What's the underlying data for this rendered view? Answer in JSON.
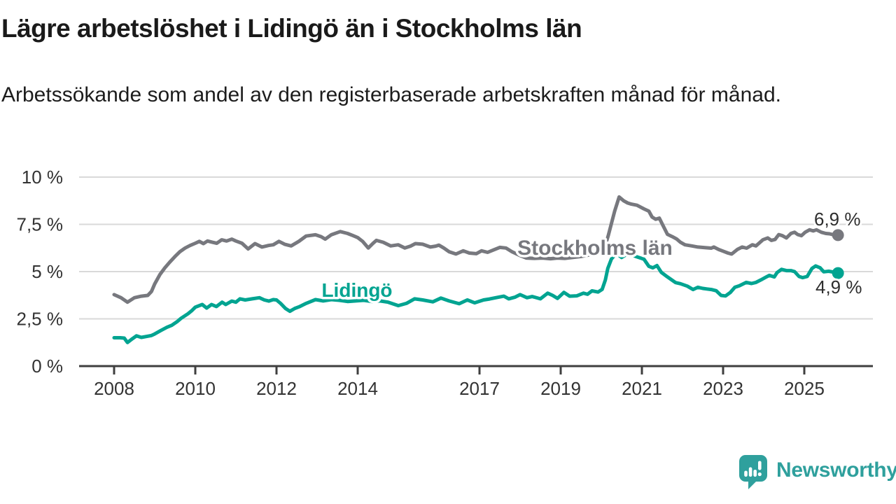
{
  "header": {
    "title": "Lägre arbetslöshet i Lidingö än i Stockholms län",
    "subtitle": "Arbetssökande som andel av den registerbaserade arbetskraften månad för månad."
  },
  "brand": {
    "name": "Newsworthy",
    "color": "#2fa09d",
    "icon": "speech-bubble-bar-chart-exclamation"
  },
  "chart_data": {
    "type": "line",
    "title": "Lägre arbetslöshet i Lidingö än i Stockholms län",
    "subtitle": "Arbetssökande som andel av den registerbaserade arbetskraften månad för månad.",
    "xlabel": "",
    "ylabel": "",
    "grid": true,
    "legend_position": "inline-labels",
    "xlim": [
      2007.1,
      2026.8
    ],
    "ylim": [
      0,
      10.5
    ],
    "colors": {
      "grid": "#d9d9d9",
      "axis": "#3f3f3f",
      "tick_text": "#333333",
      "end_label_text": "#2e2e2e"
    },
    "y_ticks": [
      {
        "label": "10 %",
        "value": 10
      },
      {
        "label": "7,5 %",
        "value": 7.5
      },
      {
        "label": "5 %",
        "value": 5
      },
      {
        "label": "2,5 %",
        "value": 2.5
      },
      {
        "label": "0 %",
        "value": 0
      }
    ],
    "x_ticks": [
      {
        "label": "2008",
        "year": 2008
      },
      {
        "label": "2010",
        "year": 2010
      },
      {
        "label": "2012",
        "year": 2012
      },
      {
        "label": "2014",
        "year": 2014
      },
      {
        "label": "2017",
        "year": 2017
      },
      {
        "label": "2019",
        "year": 2019
      },
      {
        "label": "2021",
        "year": 2021
      },
      {
        "label": "2023",
        "year": 2023
      },
      {
        "label": "2025",
        "year": 2025
      }
    ],
    "series": [
      {
        "id": "stockholms-lan",
        "name": "Stockholms län",
        "color": "#77787e",
        "end_label": "6,9 %",
        "end_value": 6.9,
        "points": [
          [
            2008,
            3.78
          ],
          [
            2008.17,
            3.62
          ],
          [
            2008.33,
            3.38
          ],
          [
            2008.5,
            3.62
          ],
          [
            2008.67,
            3.7
          ],
          [
            2008.83,
            3.74
          ],
          [
            2008.92,
            3.95
          ],
          [
            2009,
            4.35
          ],
          [
            2009.13,
            4.85
          ],
          [
            2009.25,
            5.2
          ],
          [
            2009.37,
            5.5
          ],
          [
            2009.5,
            5.8
          ],
          [
            2009.62,
            6.05
          ],
          [
            2009.75,
            6.25
          ],
          [
            2009.87,
            6.38
          ],
          [
            2010,
            6.5
          ],
          [
            2010.1,
            6.6
          ],
          [
            2010.2,
            6.48
          ],
          [
            2010.3,
            6.62
          ],
          [
            2010.42,
            6.55
          ],
          [
            2010.53,
            6.5
          ],
          [
            2010.65,
            6.68
          ],
          [
            2010.77,
            6.62
          ],
          [
            2010.9,
            6.72
          ],
          [
            2011,
            6.62
          ],
          [
            2011.15,
            6.5
          ],
          [
            2011.3,
            6.2
          ],
          [
            2011.47,
            6.48
          ],
          [
            2011.64,
            6.3
          ],
          [
            2011.8,
            6.38
          ],
          [
            2011.92,
            6.42
          ],
          [
            2012.06,
            6.6
          ],
          [
            2012.2,
            6.45
          ],
          [
            2012.36,
            6.36
          ],
          [
            2012.55,
            6.6
          ],
          [
            2012.73,
            6.88
          ],
          [
            2012.96,
            6.95
          ],
          [
            2013.1,
            6.85
          ],
          [
            2013.2,
            6.72
          ],
          [
            2013.35,
            6.95
          ],
          [
            2013.57,
            7.12
          ],
          [
            2013.75,
            7.02
          ],
          [
            2013.89,
            6.9
          ],
          [
            2014,
            6.8
          ],
          [
            2014.12,
            6.6
          ],
          [
            2014.26,
            6.25
          ],
          [
            2014.38,
            6.5
          ],
          [
            2014.46,
            6.65
          ],
          [
            2014.63,
            6.55
          ],
          [
            2014.81,
            6.36
          ],
          [
            2015,
            6.42
          ],
          [
            2015.16,
            6.25
          ],
          [
            2015.3,
            6.35
          ],
          [
            2015.42,
            6.48
          ],
          [
            2015.6,
            6.45
          ],
          [
            2015.79,
            6.3
          ],
          [
            2015.92,
            6.35
          ],
          [
            2016,
            6.4
          ],
          [
            2016.12,
            6.25
          ],
          [
            2016.25,
            6.05
          ],
          [
            2016.42,
            5.93
          ],
          [
            2016.6,
            6.1
          ],
          [
            2016.75,
            5.98
          ],
          [
            2016.92,
            5.95
          ],
          [
            2017.05,
            6.1
          ],
          [
            2017.2,
            6.02
          ],
          [
            2017.35,
            6.15
          ],
          [
            2017.5,
            6.28
          ],
          [
            2017.65,
            6.25
          ],
          [
            2017.8,
            6.05
          ],
          [
            2018,
            5.85
          ],
          [
            2018.15,
            5.72
          ],
          [
            2018.35,
            5.7
          ],
          [
            2018.55,
            5.72
          ],
          [
            2018.75,
            5.68
          ],
          [
            2018.92,
            5.72
          ],
          [
            2019.1,
            5.7
          ],
          [
            2019.3,
            5.75
          ],
          [
            2019.5,
            5.8
          ],
          [
            2019.7,
            5.88
          ],
          [
            2019.85,
            5.95
          ],
          [
            2020,
            6.05
          ],
          [
            2020.08,
            6.25
          ],
          [
            2020.17,
            6.9
          ],
          [
            2020.25,
            7.55
          ],
          [
            2020.33,
            8.2
          ],
          [
            2020.44,
            8.95
          ],
          [
            2020.55,
            8.75
          ],
          [
            2020.65,
            8.63
          ],
          [
            2020.74,
            8.57
          ],
          [
            2020.88,
            8.51
          ],
          [
            2021.05,
            8.32
          ],
          [
            2021.17,
            8.2
          ],
          [
            2021.25,
            7.89
          ],
          [
            2021.34,
            7.77
          ],
          [
            2021.43,
            7.83
          ],
          [
            2021.53,
            7.4
          ],
          [
            2021.63,
            6.97
          ],
          [
            2021.75,
            6.85
          ],
          [
            2021.86,
            6.72
          ],
          [
            2021.95,
            6.55
          ],
          [
            2022.06,
            6.42
          ],
          [
            2022.23,
            6.36
          ],
          [
            2022.38,
            6.3
          ],
          [
            2022.55,
            6.27
          ],
          [
            2022.71,
            6.24
          ],
          [
            2022.77,
            6.3
          ],
          [
            2022.89,
            6.17
          ],
          [
            2023,
            6.08
          ],
          [
            2023.12,
            5.98
          ],
          [
            2023.21,
            5.93
          ],
          [
            2023.35,
            6.17
          ],
          [
            2023.47,
            6.3
          ],
          [
            2023.58,
            6.24
          ],
          [
            2023.72,
            6.42
          ],
          [
            2023.81,
            6.36
          ],
          [
            2023.98,
            6.68
          ],
          [
            2024.1,
            6.78
          ],
          [
            2024.19,
            6.65
          ],
          [
            2024.28,
            6.7
          ],
          [
            2024.37,
            6.96
          ],
          [
            2024.46,
            6.9
          ],
          [
            2024.56,
            6.78
          ],
          [
            2024.67,
            7.02
          ],
          [
            2024.76,
            7.08
          ],
          [
            2024.84,
            6.96
          ],
          [
            2024.93,
            6.9
          ],
          [
            2025.02,
            7.08
          ],
          [
            2025.13,
            7.21
          ],
          [
            2025.22,
            7.15
          ],
          [
            2025.3,
            7.21
          ],
          [
            2025.42,
            7.08
          ],
          [
            2025.53,
            7.02
          ],
          [
            2025.62,
            7
          ],
          [
            2025.72,
            6.95
          ],
          [
            2025.83,
            6.93
          ]
        ]
      },
      {
        "id": "lidingo",
        "name": "Lidingö",
        "color": "#00a491",
        "end_label": "4,9 %",
        "end_value": 4.9,
        "points": [
          [
            2008,
            1.5
          ],
          [
            2008.15,
            1.5
          ],
          [
            2008.25,
            1.48
          ],
          [
            2008.33,
            1.25
          ],
          [
            2008.45,
            1.45
          ],
          [
            2008.55,
            1.6
          ],
          [
            2008.67,
            1.52
          ],
          [
            2008.83,
            1.58
          ],
          [
            2008.92,
            1.62
          ],
          [
            2009,
            1.7
          ],
          [
            2009.15,
            1.88
          ],
          [
            2009.3,
            2.05
          ],
          [
            2009.42,
            2.16
          ],
          [
            2009.55,
            2.35
          ],
          [
            2009.65,
            2.53
          ],
          [
            2009.82,
            2.77
          ],
          [
            2009.92,
            2.95
          ],
          [
            2010,
            3.12
          ],
          [
            2010.17,
            3.26
          ],
          [
            2010.28,
            3.07
          ],
          [
            2010.4,
            3.26
          ],
          [
            2010.52,
            3.15
          ],
          [
            2010.66,
            3.38
          ],
          [
            2010.75,
            3.26
          ],
          [
            2010.9,
            3.44
          ],
          [
            2011,
            3.38
          ],
          [
            2011.1,
            3.56
          ],
          [
            2011.23,
            3.5
          ],
          [
            2011.4,
            3.56
          ],
          [
            2011.58,
            3.62
          ],
          [
            2011.7,
            3.5
          ],
          [
            2011.81,
            3.44
          ],
          [
            2011.92,
            3.52
          ],
          [
            2012,
            3.5
          ],
          [
            2012.1,
            3.32
          ],
          [
            2012.22,
            3.05
          ],
          [
            2012.33,
            2.9
          ],
          [
            2012.45,
            3.05
          ],
          [
            2012.56,
            3.14
          ],
          [
            2012.73,
            3.32
          ],
          [
            2012.96,
            3.52
          ],
          [
            2013.15,
            3.45
          ],
          [
            2013.35,
            3.52
          ],
          [
            2013.55,
            3.48
          ],
          [
            2013.75,
            3.42
          ],
          [
            2013.95,
            3.45
          ],
          [
            2014.15,
            3.48
          ],
          [
            2014.35,
            3.42
          ],
          [
            2014.55,
            3.45
          ],
          [
            2014.75,
            3.38
          ],
          [
            2015,
            3.2
          ],
          [
            2015.2,
            3.32
          ],
          [
            2015.4,
            3.56
          ],
          [
            2015.6,
            3.5
          ],
          [
            2015.85,
            3.4
          ],
          [
            2016.05,
            3.6
          ],
          [
            2016.25,
            3.45
          ],
          [
            2016.5,
            3.3
          ],
          [
            2016.7,
            3.5
          ],
          [
            2016.88,
            3.35
          ],
          [
            2017.1,
            3.5
          ],
          [
            2017.25,
            3.55
          ],
          [
            2017.4,
            3.62
          ],
          [
            2017.6,
            3.7
          ],
          [
            2017.72,
            3.56
          ],
          [
            2017.88,
            3.65
          ],
          [
            2018,
            3.78
          ],
          [
            2018.17,
            3.62
          ],
          [
            2018.3,
            3.68
          ],
          [
            2018.5,
            3.56
          ],
          [
            2018.68,
            3.86
          ],
          [
            2018.8,
            3.74
          ],
          [
            2018.92,
            3.58
          ],
          [
            2019.08,
            3.9
          ],
          [
            2019.22,
            3.7
          ],
          [
            2019.4,
            3.72
          ],
          [
            2019.56,
            3.86
          ],
          [
            2019.66,
            3.8
          ],
          [
            2019.77,
            3.98
          ],
          [
            2019.92,
            3.92
          ],
          [
            2020.02,
            4.06
          ],
          [
            2020.1,
            4.56
          ],
          [
            2020.16,
            5.17
          ],
          [
            2020.25,
            5.67
          ],
          [
            2020.32,
            5.85
          ],
          [
            2020.4,
            5.92
          ],
          [
            2020.5,
            5.75
          ],
          [
            2020.6,
            5.88
          ],
          [
            2020.7,
            5.95
          ],
          [
            2020.85,
            5.8
          ],
          [
            2021.05,
            5.66
          ],
          [
            2021.17,
            5.28
          ],
          [
            2021.27,
            5.2
          ],
          [
            2021.37,
            5.32
          ],
          [
            2021.48,
            4.96
          ],
          [
            2021.63,
            4.72
          ],
          [
            2021.74,
            4.55
          ],
          [
            2021.83,
            4.42
          ],
          [
            2021.95,
            4.36
          ],
          [
            2022.12,
            4.23
          ],
          [
            2022.26,
            4.05
          ],
          [
            2022.38,
            4.17
          ],
          [
            2022.5,
            4.11
          ],
          [
            2022.6,
            4.08
          ],
          [
            2022.71,
            4.05
          ],
          [
            2022.83,
            3.99
          ],
          [
            2022.95,
            3.74
          ],
          [
            2023.06,
            3.71
          ],
          [
            2023.18,
            3.9
          ],
          [
            2023.29,
            4.17
          ],
          [
            2023.4,
            4.25
          ],
          [
            2023.57,
            4.43
          ],
          [
            2023.7,
            4.37
          ],
          [
            2023.81,
            4.43
          ],
          [
            2023.93,
            4.56
          ],
          [
            2024.05,
            4.7
          ],
          [
            2024.14,
            4.8
          ],
          [
            2024.26,
            4.72
          ],
          [
            2024.33,
            4.95
          ],
          [
            2024.44,
            5.12
          ],
          [
            2024.56,
            5.05
          ],
          [
            2024.67,
            5.05
          ],
          [
            2024.76,
            5.0
          ],
          [
            2024.87,
            4.74
          ],
          [
            2024.96,
            4.68
          ],
          [
            2025.07,
            4.74
          ],
          [
            2025.19,
            5.17
          ],
          [
            2025.28,
            5.3
          ],
          [
            2025.39,
            5.2
          ],
          [
            2025.48,
            4.99
          ],
          [
            2025.6,
            5.02
          ],
          [
            2025.7,
            4.98
          ],
          [
            2025.83,
            4.92
          ]
        ]
      }
    ]
  }
}
